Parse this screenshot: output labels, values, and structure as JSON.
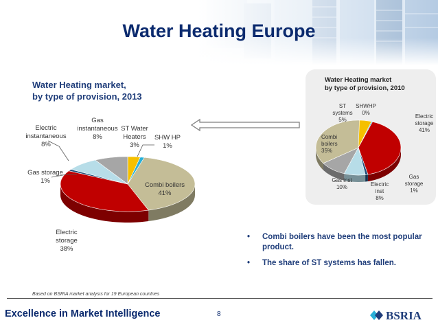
{
  "slide": {
    "title": "Water Heating Europe",
    "page_number": "8",
    "footer": "Excellence in Market Intelligence",
    "footnote": "Based on BSRIA market analysis for 19 European countries",
    "logo_text": "BSRIA"
  },
  "bullets": [
    "Combi boilers have been the most popular product.",
    "The share of ST systems has fallen."
  ],
  "chart_data": [
    {
      "type": "pie",
      "title_lines": [
        "Water Heating market,",
        "by type of provision, 2013"
      ],
      "slices": [
        {
          "key": "st_water",
          "label": "ST Water Heaters",
          "label_lines": [
            "ST Water",
            "Heaters"
          ],
          "pct_label": "3%",
          "value": 3,
          "color": "#f5c000"
        },
        {
          "key": "shw_hp",
          "label": "SHW HP",
          "label_lines": [
            "SHW HP"
          ],
          "pct_label": "1%",
          "value": 1,
          "color": "#29b0d8"
        },
        {
          "key": "combi",
          "label": "Combi boilers",
          "label_lines": [
            "Combi boilers"
          ],
          "pct_label": "41%",
          "value": 41,
          "color": "#c4bd97"
        },
        {
          "key": "electric_storage",
          "label": "Electric storage",
          "label_lines": [
            "Electric",
            "storage"
          ],
          "pct_label": "38%",
          "value": 38,
          "color": "#c00000"
        },
        {
          "key": "gas_storage",
          "label": "Gas storage",
          "label_lines": [
            "Gas storage"
          ],
          "pct_label": "1%",
          "value": 1,
          "color": "#1f4e79"
        },
        {
          "key": "electric_inst",
          "label": "Electric instantaneous",
          "label_lines": [
            "Electric",
            "instantaneous"
          ],
          "pct_label": "8%",
          "value": 8,
          "color": "#b7dde8"
        },
        {
          "key": "gas_inst",
          "label": "Gas instantaneous",
          "label_lines": [
            "Gas",
            "instantaneous"
          ],
          "pct_label": "8%",
          "value": 8,
          "color": "#a6a6a6"
        }
      ]
    },
    {
      "type": "pie",
      "title_lines": [
        "Water Heating market",
        "by type of provision, 2010"
      ],
      "slices": [
        {
          "key": "st_systems",
          "label": "ST systems",
          "label_lines": [
            "ST",
            "systems"
          ],
          "pct_label": "5%",
          "value": 5,
          "color": "#f5c000"
        },
        {
          "key": "shw_hp",
          "label": "SHWHP",
          "label_lines": [
            "SHWHP"
          ],
          "pct_label": "0%",
          "value": 0,
          "color": "#29b0d8"
        },
        {
          "key": "electric_storage",
          "label": "Electric storage",
          "label_lines": [
            "Electric",
            "storage"
          ],
          "pct_label": "41%",
          "value": 41,
          "color": "#c00000"
        },
        {
          "key": "gas_storage",
          "label": "Gas storage",
          "label_lines": [
            "Gas",
            "storage"
          ],
          "pct_label": "1%",
          "value": 1,
          "color": "#1f4e79"
        },
        {
          "key": "electric_inst",
          "label": "Electric inst",
          "label_lines": [
            "Electric",
            "inst"
          ],
          "pct_label": "8%",
          "value": 8,
          "color": "#b7dde8"
        },
        {
          "key": "gas_inst",
          "label": "Gas inst",
          "label_lines": [
            "Gas inst"
          ],
          "pct_label": "10%",
          "value": 10,
          "color": "#a6a6a6"
        },
        {
          "key": "combi",
          "label": "Combi boilers",
          "label_lines": [
            "Combi",
            "boilers"
          ],
          "pct_label": "35%",
          "value": 35,
          "color": "#c4bd97"
        }
      ]
    }
  ]
}
